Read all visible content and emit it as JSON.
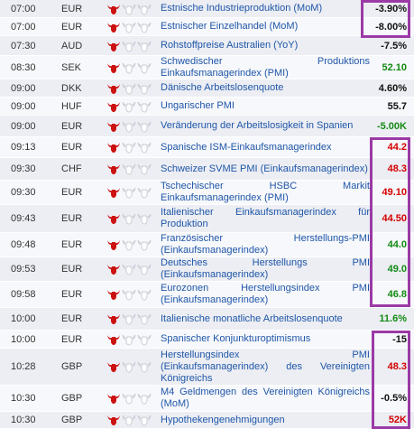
{
  "colors": {
    "highlight_frame": "#9b3aa6",
    "positive": "#138a13",
    "negative": "#d40000",
    "event_link": "#1f56a8"
  },
  "rows": [
    {
      "time": "07:00",
      "currency": "EUR",
      "importance": 1,
      "event": "Estnische Industrieproduktion (MoM)",
      "value": "-3.90%",
      "value_color": "black"
    },
    {
      "time": "07:00",
      "currency": "EUR",
      "importance": 1,
      "event": "Estnischer Einzelhandel (MoM)",
      "value": "-8.00%",
      "value_color": "black"
    },
    {
      "time": "07:30",
      "currency": "AUD",
      "importance": 1,
      "event": "Rohstoffpreise Australien (YoY)",
      "value": "-7.5%",
      "value_color": "black"
    },
    {
      "time": "08:30",
      "currency": "SEK",
      "importance": 1,
      "event": "Schwedischer Produktions Einkaufsmanagerindex (PMI)",
      "value": "52.10",
      "value_color": "green"
    },
    {
      "time": "09:00",
      "currency": "DKK",
      "importance": 1,
      "event": "Dänische Arbeitslosenquote",
      "value": "4.60%",
      "value_color": "black"
    },
    {
      "time": "09:00",
      "currency": "HUF",
      "importance": 1,
      "event": "Ungarischer PMI",
      "value": "55.7",
      "value_color": "black"
    },
    {
      "time": "09:00",
      "currency": "EUR",
      "importance": 1,
      "event": "Veränderung der Arbeitslosigkeit in Spanien",
      "value": "-5.00K",
      "value_color": "green"
    },
    {
      "time": "09:13",
      "currency": "EUR",
      "importance": 1,
      "event": "Spanische ISM-Einkaufsmanagerindex",
      "value": "44.2",
      "value_color": "red"
    },
    {
      "time": "09:30",
      "currency": "CHF",
      "importance": 1,
      "event": "Schweizer SVME PMI (Einkaufsmanagerindex)",
      "value": "48.3",
      "value_color": "red"
    },
    {
      "time": "09:30",
      "currency": "EUR",
      "importance": 1,
      "event": "Tschechischer HSBC Markit Einkaufsmanagerindex (PMI)",
      "value": "49.10",
      "value_color": "red"
    },
    {
      "time": "09:43",
      "currency": "EUR",
      "importance": 1,
      "event": "Italienischer Einkaufsmanagerindex für Produktion",
      "value": "44.50",
      "value_color": "red"
    },
    {
      "time": "09:48",
      "currency": "EUR",
      "importance": 1,
      "event": "Französischer Herstellungs-PMI (Einkaufsmanagerindex)",
      "value": "44.0",
      "value_color": "green"
    },
    {
      "time": "09:53",
      "currency": "EUR",
      "importance": 1,
      "event": "Deutsches Herstellungs PMI (Einkaufsmanagerindex)",
      "value": "49.0",
      "value_color": "green"
    },
    {
      "time": "09:58",
      "currency": "EUR",
      "importance": 1,
      "event": "Eurozonen Herstellungsindex PMI (Einkaufsmanagerindex)",
      "value": "46.8",
      "value_color": "green"
    },
    {
      "time": "10:00",
      "currency": "EUR",
      "importance": 1,
      "event": "Italienische monatliche Arbeitslosenquote",
      "value": "11.6%",
      "value_color": "green"
    },
    {
      "time": "10:00",
      "currency": "EUR",
      "importance": 1,
      "event": "Spanischer Konjunkturoptimismus",
      "value": "-15",
      "value_color": "black"
    },
    {
      "time": "10:28",
      "currency": "GBP",
      "importance": 1,
      "event": "Herstellungsindex PMI (Einkaufsmanagerindex) des Vereinigten Königreichs",
      "value": "48.3",
      "value_color": "red"
    },
    {
      "time": "10:30",
      "currency": "GBP",
      "importance": 1,
      "event": "M4 Geldmengen des Vereinigten Königreichs (MoM)",
      "value": "-0.5%",
      "value_color": "black"
    },
    {
      "time": "10:30",
      "currency": "GBP",
      "importance": 1,
      "event": "Hypothekengenehmigungen",
      "value": "52K",
      "value_color": "red"
    }
  ]
}
